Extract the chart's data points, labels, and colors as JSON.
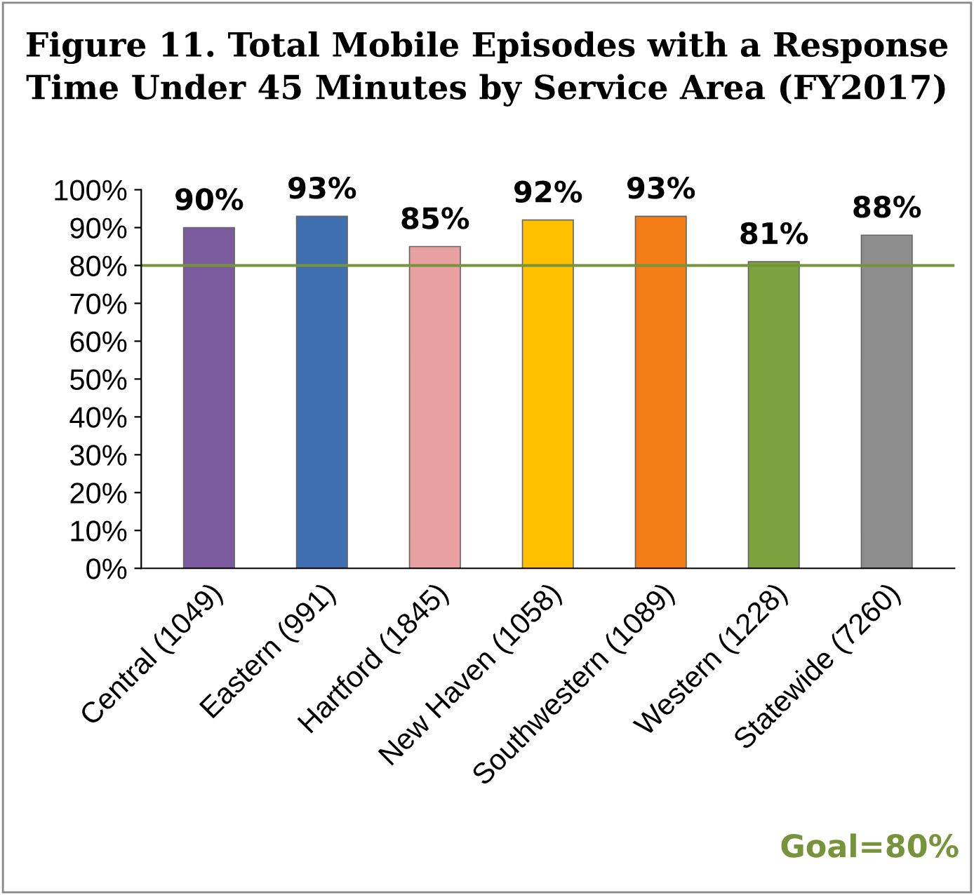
{
  "chart_data": {
    "type": "bar",
    "title": "Figure 11. Total Mobile Episodes with a Response Time Under 45 Minutes by Service Area (FY2017)",
    "categories": [
      "Central (1049)",
      "Eastern (991)",
      "Hartford (1845)",
      "New Haven (1058)",
      "Southwestern (1089)",
      "Western (1228)",
      "Statewide (7260)"
    ],
    "values": [
      90,
      93,
      85,
      92,
      93,
      81,
      88
    ],
    "value_labels": [
      "90%",
      "93%",
      "85%",
      "92%",
      "93%",
      "81%",
      "88%"
    ],
    "colors": [
      "#7b5a9e",
      "#3f6faf",
      "#e8a0a0",
      "#ffc000",
      "#f57d18",
      "#7ba23f",
      "#8c8c8c"
    ],
    "ylim": [
      0,
      100
    ],
    "yticks": [
      {
        "value": 0,
        "label": "0%"
      },
      {
        "value": 10,
        "label": "10%"
      },
      {
        "value": 20,
        "label": "20%"
      },
      {
        "value": 30,
        "label": "30%"
      },
      {
        "value": 40,
        "label": "40%"
      },
      {
        "value": 50,
        "label": "50%"
      },
      {
        "value": 60,
        "label": "60%"
      },
      {
        "value": 70,
        "label": "70%"
      },
      {
        "value": 80,
        "label": "80%"
      },
      {
        "value": 90,
        "label": "90%"
      },
      {
        "value": 100,
        "label": "100%"
      }
    ],
    "ref_lines": [
      {
        "axis": "y",
        "value": 80,
        "label": "Goal=80%",
        "color": "#77933c"
      }
    ],
    "grid": false,
    "legend": false
  }
}
